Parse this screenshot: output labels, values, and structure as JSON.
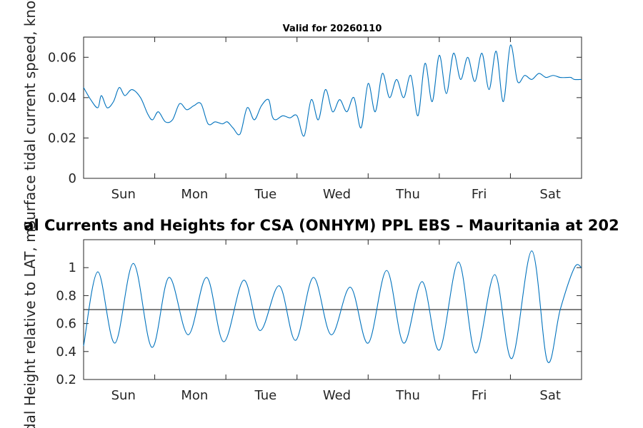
{
  "chart_data": [
    {
      "type": "line",
      "title": "Valid for 20260110",
      "ylabel": "Surface tidal current speed, knots",
      "xlabel": "",
      "x_tick_labels": [
        "Sun",
        "Mon",
        "Tue",
        "Wed",
        "Thu",
        "Fri",
        "Sat"
      ],
      "x_range_days": [
        0,
        7
      ],
      "ylim": [
        0,
        0.07
      ],
      "y_ticks": [
        0,
        0.02,
        0.04,
        0.06
      ],
      "y_tick_labels": [
        "0",
        "0.02",
        "0.04",
        "0.06"
      ],
      "line_color": "#0072bd",
      "series": [
        {
          "name": "Current speed",
          "x": [
            0,
            0.1,
            0.2,
            0.25,
            0.33,
            0.42,
            0.5,
            0.58,
            0.68,
            0.8,
            0.9,
            0.97,
            1.05,
            1.15,
            1.25,
            1.35,
            1.45,
            1.55,
            1.65,
            1.75,
            1.85,
            1.95,
            2.02,
            2.1,
            2.2,
            2.3,
            2.4,
            2.5,
            2.6,
            2.65,
            2.7,
            2.8,
            2.9,
            3.0,
            3.1,
            3.2,
            3.3,
            3.4,
            3.5,
            3.6,
            3.7,
            3.8,
            3.9,
            4.0,
            4.1,
            4.2,
            4.3,
            4.4,
            4.5,
            4.6,
            4.7,
            4.8,
            4.9,
            5.0,
            5.1,
            5.2,
            5.3,
            5.4,
            5.5,
            5.6,
            5.7,
            5.8,
            5.9,
            6.0,
            6.1,
            6.2,
            6.3,
            6.4,
            6.5,
            6.6,
            6.7,
            6.8,
            6.85,
            6.9,
            7.0
          ],
          "values": [
            0.045,
            0.039,
            0.035,
            0.041,
            0.035,
            0.038,
            0.045,
            0.041,
            0.044,
            0.04,
            0.032,
            0.029,
            0.033,
            0.028,
            0.029,
            0.037,
            0.034,
            0.036,
            0.037,
            0.027,
            0.028,
            0.027,
            0.028,
            0.025,
            0.022,
            0.035,
            0.029,
            0.036,
            0.039,
            0.031,
            0.029,
            0.031,
            0.03,
            0.031,
            0.021,
            0.039,
            0.029,
            0.044,
            0.033,
            0.039,
            0.033,
            0.04,
            0.025,
            0.047,
            0.033,
            0.052,
            0.04,
            0.049,
            0.04,
            0.051,
            0.031,
            0.057,
            0.038,
            0.061,
            0.042,
            0.062,
            0.049,
            0.06,
            0.048,
            0.062,
            0.044,
            0.063,
            0.038,
            0.066,
            0.048,
            0.051,
            0.049,
            0.052,
            0.05,
            0.051,
            0.05,
            0.05,
            0.05,
            0.049,
            0.049
          ]
        }
      ]
    },
    {
      "type": "line",
      "title": "al Currents and Heights for CSA (ONHYM) PPL EBS  – Mauritania at 202",
      "ylabel": "idal Height relative to LAT, m",
      "xlabel": "",
      "x_tick_labels": [
        "Sun",
        "Mon",
        "Tue",
        "Wed",
        "Thu",
        "Fri",
        "Sat"
      ],
      "x_range_days": [
        0,
        7
      ],
      "ylim": [
        0.2,
        1.2
      ],
      "y_ticks": [
        0.2,
        0.4,
        0.6,
        0.8,
        1.0
      ],
      "y_tick_labels": [
        "0.2",
        "0.4",
        "0.6",
        "0.8",
        "1"
      ],
      "reference_line": 0.7,
      "line_color": "#0072bd",
      "series": [
        {
          "name": "Tidal height",
          "x": [
            0,
            0.2,
            0.44,
            0.7,
            0.96,
            1.2,
            1.47,
            1.73,
            1.97,
            2.25,
            2.48,
            2.75,
            2.98,
            3.23,
            3.48,
            3.75,
            4.0,
            4.26,
            4.5,
            4.76,
            5.0,
            5.27,
            5.51,
            5.78,
            6.02,
            6.3,
            6.52,
            6.7,
            6.9,
            7.0
          ],
          "values": [
            0.44,
            0.97,
            0.46,
            1.03,
            0.43,
            0.93,
            0.52,
            0.93,
            0.47,
            0.91,
            0.55,
            0.87,
            0.48,
            0.93,
            0.52,
            0.86,
            0.46,
            0.98,
            0.46,
            0.9,
            0.41,
            1.04,
            0.39,
            0.95,
            0.35,
            1.12,
            0.33,
            0.7,
            1.0,
            1.0
          ]
        }
      ]
    }
  ]
}
